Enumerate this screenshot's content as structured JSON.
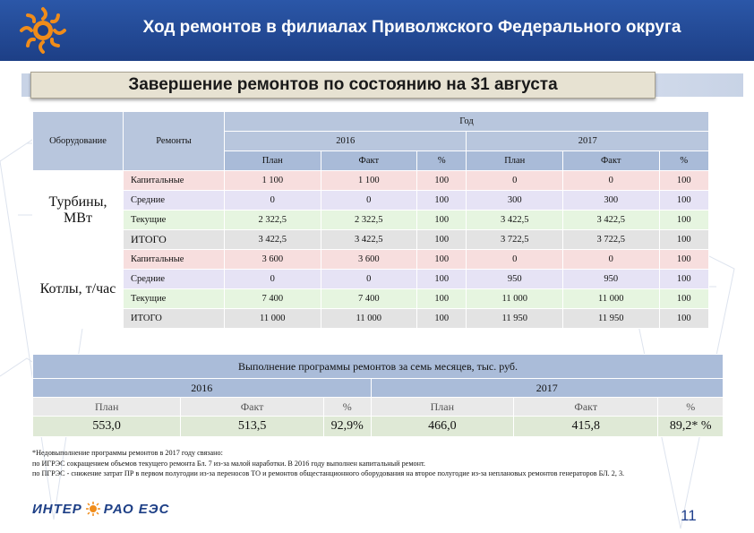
{
  "header": {
    "title": "Ход ремонтов в филиалах Приволжского Федерального округа"
  },
  "subtitle": "Завершение ремонтов по состоянию на 31 августа",
  "repairs_table": {
    "col_equipment": "Оборудование",
    "col_repairs": "Ремонты",
    "col_year": "Год",
    "year1": "2016",
    "year2": "2017",
    "sub_plan": "План",
    "sub_fact": "Факт",
    "sub_pct": "%",
    "groups": [
      {
        "name": "Турбины, МВт",
        "rows": [
          {
            "type": "Капитальные",
            "v": [
              "1 100",
              "1 100",
              "100",
              "0",
              "0",
              "100"
            ]
          },
          {
            "type": "Средние",
            "v": [
              "0",
              "0",
              "100",
              "300",
              "300",
              "100"
            ]
          },
          {
            "type": "Текущие",
            "v": [
              "2 322,5",
              "2 322,5",
              "100",
              "3 422,5",
              "3 422,5",
              "100"
            ]
          },
          {
            "type": "ИТОГО",
            "v": [
              "3 422,5",
              "3 422,5",
              "100",
              "3 722,5",
              "3 722,5",
              "100"
            ]
          }
        ]
      },
      {
        "name": "Котлы, т/час",
        "rows": [
          {
            "type": "Капитальные",
            "v": [
              "3 600",
              "3 600",
              "100",
              "0",
              "0",
              "100"
            ]
          },
          {
            "type": "Средние",
            "v": [
              "0",
              "0",
              "100",
              "950",
              "950",
              "100"
            ]
          },
          {
            "type": "Текущие",
            "v": [
              "7 400",
              "7 400",
              "100",
              "11 000",
              "11 000",
              "100"
            ]
          },
          {
            "type": "ИТОГО",
            "v": [
              "11 000",
              "11 000",
              "100",
              "11 950",
              "11 950",
              "100"
            ]
          }
        ]
      }
    ]
  },
  "program_table": {
    "caption": "Выполнение программы ремонтов за семь месяцев, тыс. руб.",
    "year1": "2016",
    "year2": "2017",
    "labels": [
      "План",
      "Факт",
      "%",
      "План",
      "Факт",
      "%"
    ],
    "values": [
      "553,0",
      "513,5",
      "92,9%",
      "466,0",
      "415,8",
      "89,2* %"
    ]
  },
  "notes": [
    "*Недовыполнение программы ремонтов в 2017 году связано:",
    "по ИГРЭС сокращением объемов текущего ремонта Бл. 7 из-за малой наработки. В 2016 году выполнен капитальный ремонт.",
    "по ПГРЭС - снижение затрат ПР в первом полугодии из-за переносов ТО и ремонтов общестанционного оборудования на второе полугодие из-за неплановых ремонтов генераторов БЛ. 2, 3."
  ],
  "footer": {
    "logo_left": "ИНТЕР",
    "logo_right": "РАО ЕЭС",
    "page": "11"
  },
  "colors": {
    "header_blue": "#1d3f86",
    "accent_orange": "#f08c1a"
  }
}
